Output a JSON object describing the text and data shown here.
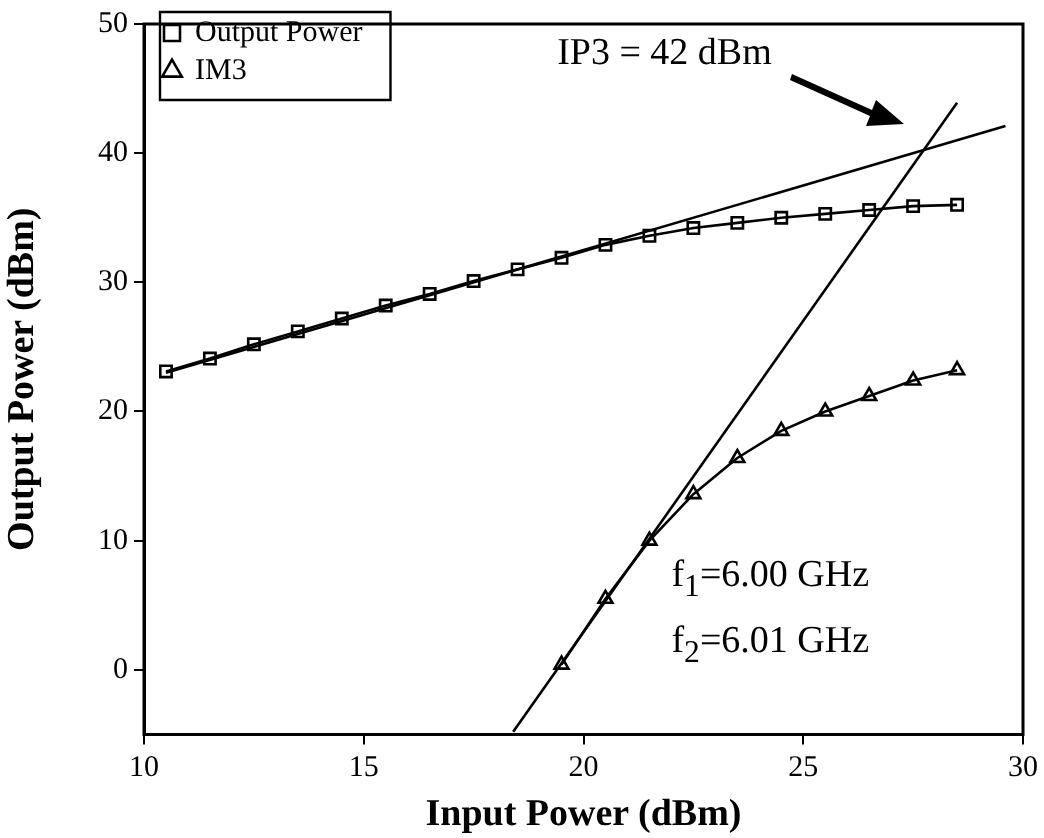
{
  "chart_data": {
    "type": "line",
    "xlabel": "Input Power (dBm)",
    "ylabel": "Output Power (dBm)",
    "xlim": [
      10,
      30
    ],
    "xticks": [
      10,
      15,
      20,
      25,
      30
    ],
    "ylim": [
      -5,
      50
    ],
    "yticks": [
      0,
      10,
      20,
      30,
      40,
      50
    ],
    "grid": false,
    "legend": "top left",
    "line_style": "solid",
    "series": [
      {
        "name": "Output Power",
        "color": "#000000",
        "marker": "square",
        "x": [
          10.5,
          11.5,
          12.5,
          13.5,
          14.5,
          15.5,
          16.5,
          17.5,
          18.5,
          19.5,
          20.5,
          21.5,
          22.5,
          23.5,
          24.5,
          25.5,
          26.5,
          27.5,
          28.5
        ],
        "values": [
          23.1,
          24.1,
          25.2,
          26.2,
          27.2,
          28.2,
          29.1,
          30.1,
          31.0,
          31.9,
          32.9,
          33.6,
          34.2,
          34.6,
          35.0,
          35.3,
          35.6,
          35.9,
          36.0
        ]
      },
      {
        "name": "IM3",
        "color": "#000000",
        "marker": "triangle",
        "x": [
          19.5,
          20.5,
          21.5,
          22.5,
          23.5,
          24.5,
          25.5,
          26.5,
          27.5,
          28.5
        ],
        "values": [
          0.4,
          5.5,
          10.0,
          13.6,
          16.4,
          18.5,
          20.0,
          21.2,
          22.4,
          23.2
        ]
      },
      {
        "type": "line",
        "color": "#000000",
        "marker": "none",
        "x": [
          10.5,
          29.6
        ],
        "values": [
          23.0,
          42.1
        ]
      },
      {
        "type": "line",
        "color": "#000000",
        "marker": "none",
        "x": [
          18.4,
          28.5
        ],
        "values": [
          -4.8,
          43.9
        ]
      }
    ],
    "annotations": [
      "IP3 = 42 dBm",
      "f$_{1}$=6.00 GHz",
      "f$_{2}$=6.01 GHz"
    ]
  }
}
